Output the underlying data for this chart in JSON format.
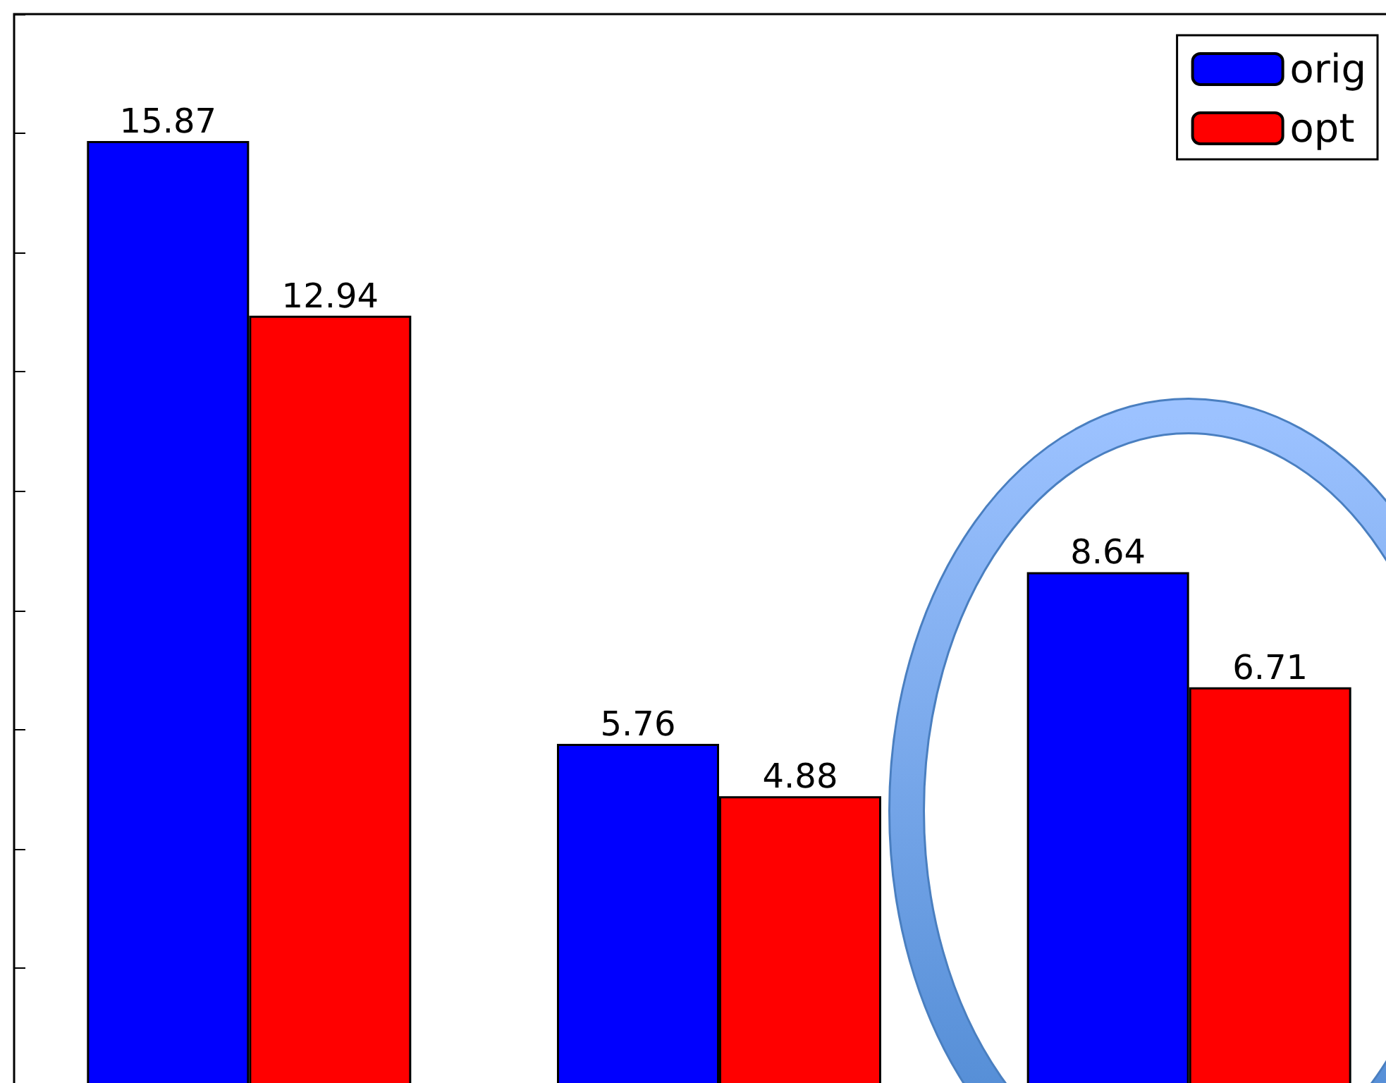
{
  "chart_data": {
    "type": "bar",
    "categories": [
      null,
      null,
      null
    ],
    "series": [
      {
        "name": "orig",
        "color": "#0000ff",
        "values": [
          15.87,
          5.76,
          8.64
        ]
      },
      {
        "name": "opt",
        "color": "#ff0000",
        "values": [
          12.94,
          4.88,
          6.71
        ]
      }
    ],
    "ylim": [
      0,
      18
    ],
    "yticks": [
      0,
      2,
      4,
      6,
      8,
      10,
      12,
      14,
      16,
      18
    ],
    "data_labels": true,
    "legend": "top right",
    "grid": false,
    "tick_labels": false
  }
}
